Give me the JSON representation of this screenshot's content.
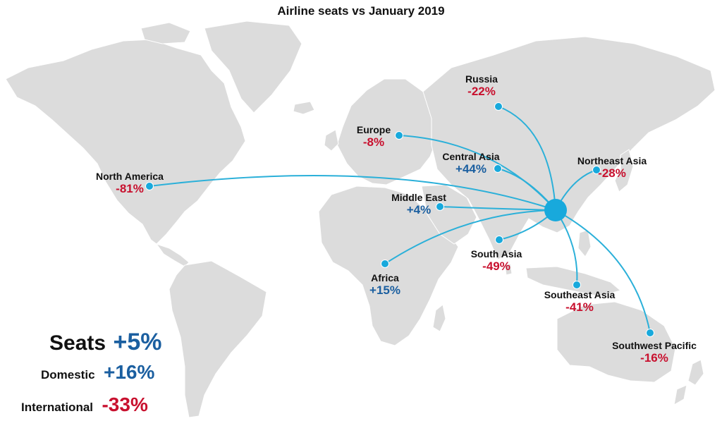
{
  "title": "Airline seats vs January 2019",
  "colors": {
    "land": "#dcdcdc",
    "route": "#2bb0d9",
    "hub": "#18a9dc",
    "negative": "#c8102e",
    "positive": "#1b5fa0"
  },
  "hub": "china",
  "regions": [
    {
      "id": "russia",
      "name": "Russia",
      "value": "-22%",
      "change": -22
    },
    {
      "id": "europe",
      "name": "Europe",
      "value": "-8%",
      "change": -8
    },
    {
      "id": "central_asia",
      "name": "Central Asia",
      "value": "+44%",
      "change": 44
    },
    {
      "id": "northeast_asia",
      "name": "Northeast Asia",
      "value": "-28%",
      "change": -28
    },
    {
      "id": "north_america",
      "name": "North America",
      "value": "-81%",
      "change": -81
    },
    {
      "id": "middle_east",
      "name": "Middle East",
      "value": "+4%",
      "change": 4
    },
    {
      "id": "south_asia",
      "name": "South Asia",
      "value": "-49%",
      "change": -49
    },
    {
      "id": "africa",
      "name": "Africa",
      "value": "+15%",
      "change": 15
    },
    {
      "id": "southeast_asia",
      "name": "Southeast Asia",
      "value": "-41%",
      "change": -41
    },
    {
      "id": "southwest_pacific",
      "name": "Southwest Pacific",
      "value": "-16%",
      "change": -16
    }
  ],
  "summary": {
    "seats": {
      "label": "Seats",
      "value": "+5%"
    },
    "domestic": {
      "label": "Domestic",
      "value": "+16%"
    },
    "international": {
      "label": "International",
      "value": "-33%"
    }
  }
}
